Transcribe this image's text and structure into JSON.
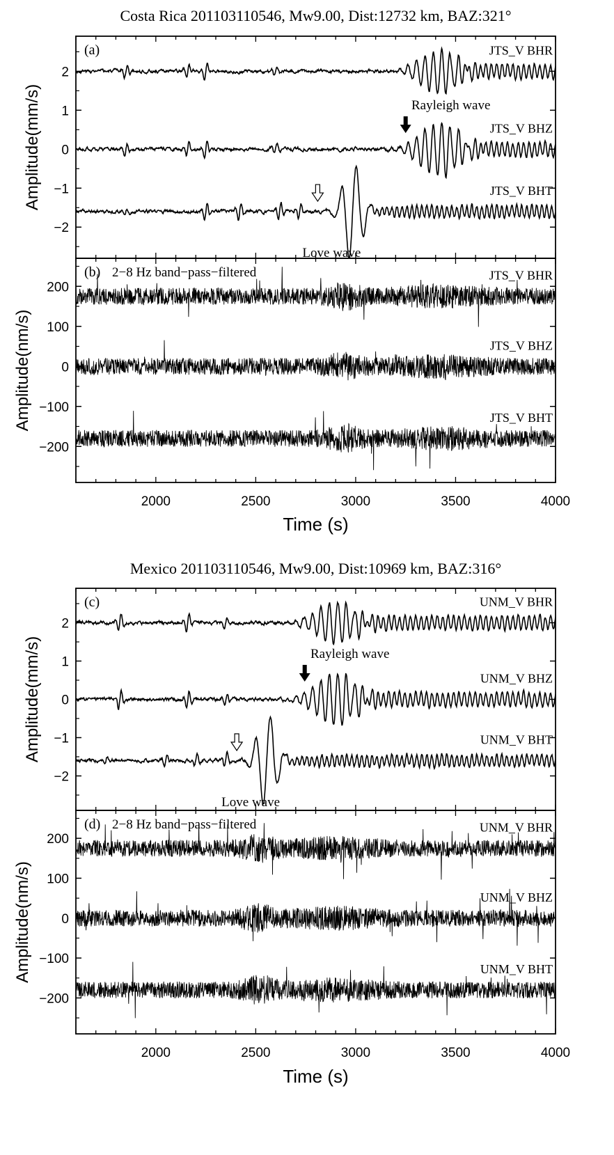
{
  "chart_data": [
    {
      "type": "line",
      "title": "Costa Rica 201103110546, Mw9.00, Dist:12732 km, BAZ:321°",
      "xlabel": "Time (s)",
      "xlim": [
        1600,
        4000
      ],
      "xticks": [
        2000,
        2500,
        3000,
        3500,
        4000
      ],
      "panels": [
        {
          "label": "(a)",
          "ylabel": "Amplitude(mm/s)",
          "ylim": [
            -2.8,
            2.9
          ],
          "yticks": [
            -2,
            -1,
            0,
            1,
            2
          ],
          "series": [
            {
              "name": "JTS_V BHR",
              "offset": 2.0
            },
            {
              "name": "JTS_V BHZ",
              "offset": 0.0
            },
            {
              "name": "JTS_V BHT",
              "offset": -1.6
            }
          ],
          "annotations": [
            {
              "text": "Rayleigh wave",
              "arrow": "filled",
              "x": 3250,
              "y": 0.45
            },
            {
              "text": "Love wave",
              "arrow": "open",
              "x": 2810,
              "y": -1.3
            }
          ]
        },
        {
          "label": "(b)",
          "note": "2−8 Hz band−pass−filtered",
          "ylabel": "Amplitude(nm/s)",
          "ylim": [
            -290,
            270
          ],
          "yticks": [
            -200,
            -100,
            0,
            100,
            200
          ],
          "series": [
            {
              "name": "JTS_V BHR",
              "offset": 175
            },
            {
              "name": "JTS_V BHZ",
              "offset": 0
            },
            {
              "name": "JTS_V BHT",
              "offset": -180
            }
          ]
        }
      ]
    },
    {
      "type": "line",
      "title": "Mexico 201103110546, Mw9.00, Dist:10969 km, BAZ:316°",
      "xlabel": "Time (s)",
      "xlim": [
        1600,
        4000
      ],
      "xticks": [
        2000,
        2500,
        3000,
        3500,
        4000
      ],
      "panels": [
        {
          "label": "(c)",
          "ylabel": "Amplitude(mm/s)",
          "ylim": [
            -2.9,
            2.9
          ],
          "yticks": [
            -2,
            -1,
            0,
            1,
            2
          ],
          "series": [
            {
              "name": "UNM_V BHR",
              "offset": 2.0
            },
            {
              "name": "UNM_V BHZ",
              "offset": 0.0
            },
            {
              "name": "UNM_V BHT",
              "offset": -1.6
            }
          ],
          "annotations": [
            {
              "text": "Rayleigh wave",
              "arrow": "filled",
              "x": 2745,
              "y": 0.5
            },
            {
              "text": "Love wave",
              "arrow": "open",
              "x": 2405,
              "y": -1.3
            }
          ]
        },
        {
          "label": "(d)",
          "note": "2−8 Hz band−pass−filtered",
          "ylabel": "Amplitude(nm/s)",
          "ylim": [
            -290,
            270
          ],
          "yticks": [
            -200,
            -100,
            0,
            100,
            200
          ],
          "series": [
            {
              "name": "UNM_V BHR",
              "offset": 175
            },
            {
              "name": "UNM_V BHZ",
              "offset": 0
            },
            {
              "name": "UNM_V BHT",
              "offset": -180
            }
          ]
        }
      ]
    }
  ]
}
